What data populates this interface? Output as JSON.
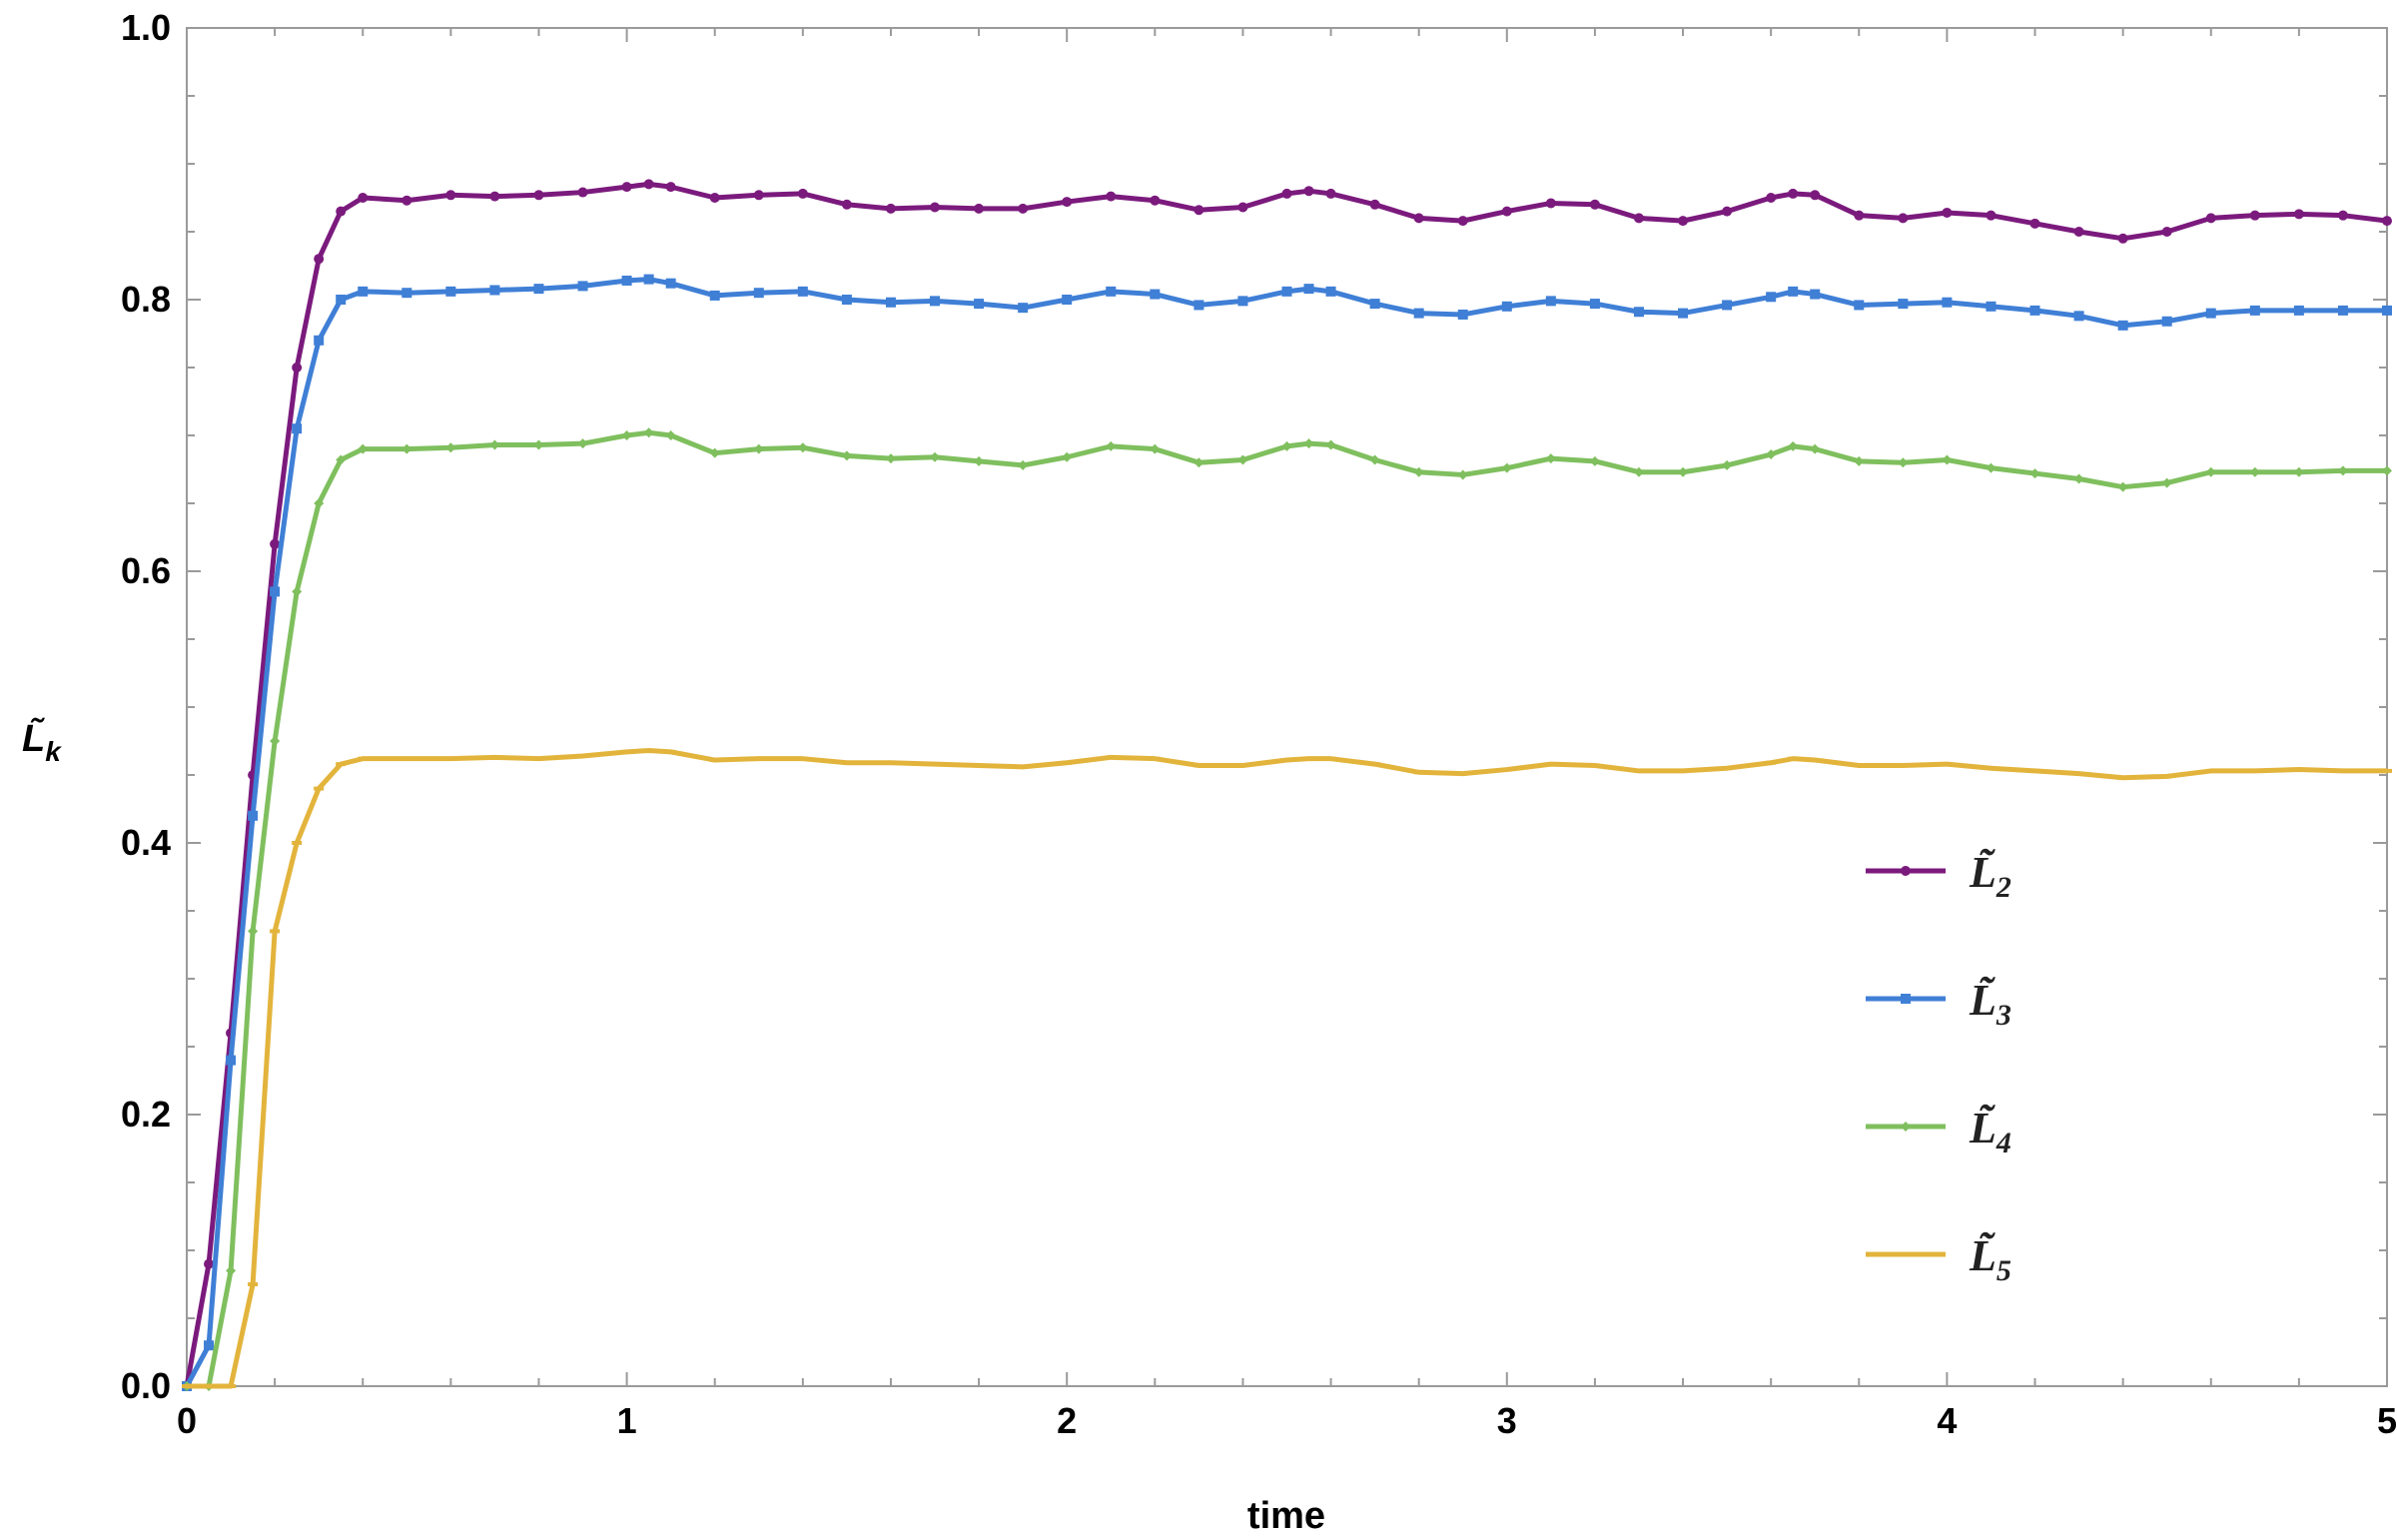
{
  "chart_data": {
    "type": "line",
    "xlabel": "time",
    "ylabel": "L̃",
    "ylabel_sub": "k",
    "xlim": [
      0,
      5
    ],
    "ylim": [
      0,
      1.0
    ],
    "x_ticks": [
      "0",
      "1",
      "2",
      "3",
      "4",
      "5"
    ],
    "y_ticks": [
      "0.0",
      "0.2",
      "0.4",
      "0.6",
      "0.8",
      "1.0"
    ],
    "grid": false,
    "legend_position": "right-middle",
    "x": [
      0.0,
      0.05,
      0.1,
      0.15,
      0.2,
      0.25,
      0.3,
      0.35,
      0.4,
      0.5,
      0.6,
      0.7,
      0.8,
      0.9,
      1.0,
      1.05,
      1.1,
      1.2,
      1.3,
      1.4,
      1.5,
      1.6,
      1.7,
      1.8,
      1.9,
      2.0,
      2.1,
      2.2,
      2.3,
      2.4,
      2.5,
      2.55,
      2.6,
      2.7,
      2.8,
      2.9,
      3.0,
      3.1,
      3.2,
      3.3,
      3.4,
      3.5,
      3.6,
      3.65,
      3.7,
      3.8,
      3.9,
      4.0,
      4.1,
      4.2,
      4.3,
      4.4,
      4.5,
      4.6,
      4.7,
      4.8,
      4.9,
      5.0
    ],
    "series": [
      {
        "name": "L̃",
        "sub": "2",
        "color": "#7b1a7d",
        "marker": "circle",
        "values": [
          0.0,
          0.09,
          0.26,
          0.45,
          0.62,
          0.75,
          0.83,
          0.865,
          0.875,
          0.873,
          0.877,
          0.876,
          0.877,
          0.879,
          0.883,
          0.885,
          0.883,
          0.875,
          0.877,
          0.878,
          0.87,
          0.867,
          0.868,
          0.867,
          0.867,
          0.872,
          0.876,
          0.873,
          0.866,
          0.868,
          0.878,
          0.88,
          0.878,
          0.87,
          0.86,
          0.858,
          0.865,
          0.871,
          0.87,
          0.86,
          0.858,
          0.865,
          0.875,
          0.878,
          0.877,
          0.862,
          0.86,
          0.864,
          0.862,
          0.856,
          0.85,
          0.845,
          0.85,
          0.86,
          0.862,
          0.863,
          0.862,
          0.858
        ]
      },
      {
        "name": "L̃",
        "sub": "3",
        "color": "#3f7fd6",
        "marker": "square",
        "values": [
          0.0,
          0.03,
          0.24,
          0.42,
          0.585,
          0.705,
          0.77,
          0.8,
          0.806,
          0.805,
          0.806,
          0.807,
          0.808,
          0.81,
          0.814,
          0.815,
          0.812,
          0.803,
          0.805,
          0.806,
          0.8,
          0.798,
          0.799,
          0.797,
          0.794,
          0.8,
          0.806,
          0.804,
          0.796,
          0.799,
          0.806,
          0.808,
          0.806,
          0.797,
          0.79,
          0.789,
          0.795,
          0.799,
          0.797,
          0.791,
          0.79,
          0.796,
          0.802,
          0.806,
          0.804,
          0.796,
          0.797,
          0.798,
          0.795,
          0.792,
          0.788,
          0.781,
          0.784,
          0.79,
          0.792,
          0.792,
          0.792,
          0.792
        ]
      },
      {
        "name": "L̃",
        "sub": "4",
        "color": "#7fbf5e",
        "marker": "diamond",
        "values": [
          0.0,
          0.0,
          0.085,
          0.335,
          0.475,
          0.585,
          0.65,
          0.682,
          0.69,
          0.69,
          0.691,
          0.693,
          0.693,
          0.694,
          0.7,
          0.702,
          0.7,
          0.687,
          0.69,
          0.691,
          0.685,
          0.683,
          0.684,
          0.681,
          0.678,
          0.684,
          0.692,
          0.69,
          0.68,
          0.682,
          0.692,
          0.694,
          0.693,
          0.682,
          0.673,
          0.671,
          0.676,
          0.683,
          0.681,
          0.673,
          0.673,
          0.678,
          0.686,
          0.692,
          0.69,
          0.681,
          0.68,
          0.682,
          0.676,
          0.672,
          0.668,
          0.662,
          0.665,
          0.673,
          0.673,
          0.673,
          0.674,
          0.674
        ]
      },
      {
        "name": "L̃",
        "sub": "5",
        "color": "#e3b43c",
        "marker": "dash",
        "values": [
          0.0,
          0.0,
          0.0,
          0.075,
          0.335,
          0.4,
          0.44,
          0.458,
          0.462,
          0.462,
          0.462,
          0.463,
          0.462,
          0.464,
          0.467,
          0.468,
          0.467,
          0.461,
          0.462,
          0.462,
          0.459,
          0.459,
          0.458,
          0.457,
          0.456,
          0.459,
          0.463,
          0.462,
          0.457,
          0.457,
          0.461,
          0.462,
          0.462,
          0.458,
          0.452,
          0.451,
          0.454,
          0.458,
          0.457,
          0.453,
          0.453,
          0.455,
          0.459,
          0.462,
          0.461,
          0.457,
          0.457,
          0.458,
          0.455,
          0.453,
          0.451,
          0.448,
          0.449,
          0.453,
          0.453,
          0.454,
          0.453,
          0.453
        ]
      }
    ]
  }
}
